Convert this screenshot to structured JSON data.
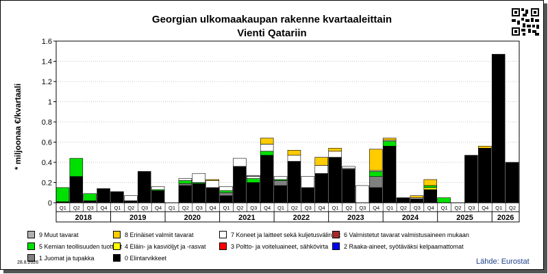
{
  "title": "Georgian ulkomaakaupan rakenne kvartaaleittain",
  "subtitle": "Vienti Qatariin",
  "date": "28.8.2026",
  "source": "Lähde: Eurostat",
  "chart_data": {
    "type": "bar",
    "stacked": true,
    "title": "Georgian ulkomaakaupan rakenne kvartaaleittain",
    "subtitle": "Vienti Qatariin",
    "ylabel": "* miljoonaa €/kvartaali",
    "xlabel": "",
    "ylim": [
      0,
      1.6
    ],
    "yticks": [
      "0",
      "0.2",
      "0.4",
      "0.6",
      "0.8",
      "1",
      "1.2",
      "1.4",
      "1.6"
    ],
    "grid": true,
    "legend_position": "bottom",
    "years": [
      "2018",
      "2019",
      "2020",
      "2021",
      "2022",
      "2023",
      "2024",
      "2025",
      "2026"
    ],
    "categories": [
      "Q1",
      "Q2",
      "Q3",
      "Q4",
      "Q1",
      "Q2",
      "Q3",
      "Q4",
      "Q1",
      "Q2",
      "Q3",
      "Q4",
      "Q1",
      "Q2",
      "Q3",
      "Q4",
      "Q1",
      "Q2",
      "Q3",
      "Q4",
      "Q1",
      "Q2",
      "Q3",
      "Q4",
      "Q1",
      "Q2",
      "Q3",
      "Q4",
      "Q1",
      "Q2",
      "Q3",
      "Q4",
      "Q1",
      "Q2"
    ],
    "series": [
      {
        "name": "0 Elintarvikkeet",
        "color": "#000000",
        "values": [
          0.01,
          0.26,
          0.02,
          0.14,
          0.11,
          0.02,
          0.31,
          0.12,
          0,
          0.17,
          0.19,
          0.15,
          0.07,
          0.36,
          0.2,
          0.47,
          0.17,
          0.41,
          0.15,
          0.29,
          0.45,
          0.33,
          0,
          0.15,
          0.56,
          0.05,
          0.04,
          0.13,
          0,
          0,
          0.47,
          0.54,
          1.47,
          0.4
        ]
      },
      {
        "name": "1 Juomat ja tupakka",
        "color": "#808080",
        "values": [
          0,
          0,
          0,
          0,
          0,
          0,
          0,
          0,
          0,
          0.02,
          0,
          0,
          0.03,
          0,
          0,
          0,
          0.05,
          0,
          0,
          0,
          0,
          0.01,
          0,
          0.11,
          0,
          0,
          0,
          0,
          0,
          0,
          0,
          0,
          0,
          0
        ]
      },
      {
        "name": "2 Raaka-aineet, syötäväksi kelpaamattomat",
        "color": "#0000ff",
        "values": [
          0,
          0,
          0,
          0,
          0,
          0,
          0,
          0,
          0,
          0,
          0,
          0,
          0,
          0,
          0,
          0,
          0,
          0,
          0,
          0,
          0,
          0,
          0,
          0,
          0,
          0,
          0,
          0,
          0,
          0,
          0,
          0,
          0,
          0
        ]
      },
      {
        "name": "3 Poltto- ja voiteluaineet, sähkövirta",
        "color": "#ff0000",
        "values": [
          0,
          0,
          0,
          0,
          0,
          0,
          0,
          0,
          0,
          0,
          0,
          0,
          0,
          0,
          0,
          0,
          0,
          0,
          0,
          0,
          0,
          0,
          0,
          0,
          0,
          0,
          0,
          0,
          0,
          0,
          0,
          0,
          0,
          0
        ]
      },
      {
        "name": "4 Eläin- ja kasviöljyt ja -rasvat",
        "color": "#ffff00",
        "values": [
          0,
          0,
          0,
          0,
          0,
          0,
          0,
          0,
          0,
          0,
          0,
          0,
          0,
          0,
          0,
          0,
          0,
          0,
          0,
          0,
          0,
          0,
          0,
          0,
          0,
          0,
          0,
          0.02,
          0,
          0,
          0,
          0,
          0,
          0
        ]
      },
      {
        "name": "5 Kemian teollisuuden tuotteet",
        "color": "#00e000",
        "values": [
          0.14,
          0.18,
          0.07,
          0,
          0,
          0,
          0,
          0.01,
          0,
          0.03,
          0.01,
          0,
          0.02,
          0,
          0.04,
          0.04,
          0.01,
          0,
          0,
          0,
          0,
          0,
          0,
          0.05,
          0.05,
          0,
          0,
          0.02,
          0.05,
          0,
          0,
          0,
          0,
          0
        ]
      },
      {
        "name": "6 Valmistetut tavarat valmistusaineen mukaan",
        "color": "#a52a2a",
        "values": [
          0,
          0,
          0,
          0,
          0,
          0,
          0,
          0,
          0,
          0,
          0,
          0,
          0,
          0,
          0,
          0,
          0,
          0,
          0,
          0,
          0,
          0,
          0,
          0,
          0,
          0,
          0,
          0,
          0,
          0,
          0,
          0,
          0,
          0
        ]
      },
      {
        "name": "7 Koneet ja laitteet sekä kuljetusvälineet",
        "color": "#ffffff",
        "values": [
          0,
          0,
          0,
          0,
          0,
          0.05,
          0,
          0.03,
          0,
          0.02,
          0.09,
          0.07,
          0.04,
          0.08,
          0.02,
          0.07,
          0.03,
          0.06,
          0.11,
          0.08,
          0.06,
          0.02,
          0.17,
          0.01,
          0.01,
          0,
          0.01,
          0,
          0,
          0,
          0,
          0,
          0,
          0
        ]
      },
      {
        "name": "8 Erinäiset valmiit tavarat",
        "color": "#ffcc00",
        "values": [
          0,
          0,
          0,
          0,
          0,
          0,
          0,
          0,
          0,
          0,
          0,
          0.01,
          0,
          0,
          0,
          0.06,
          0,
          0.05,
          0,
          0.08,
          0.03,
          0,
          0,
          0.21,
          0.02,
          0,
          0.02,
          0.06,
          0,
          0,
          0,
          0.02,
          0,
          0
        ]
      },
      {
        "name": "9 Muut tavarat",
        "color": "#b0b0b0",
        "values": [
          0,
          0,
          0,
          0,
          0,
          0,
          0,
          0,
          0,
          0,
          0,
          0,
          0,
          0,
          0.01,
          0,
          0,
          0,
          0,
          0,
          0,
          0,
          0,
          0,
          0,
          0,
          0,
          0,
          0,
          0,
          0,
          0,
          0,
          0
        ]
      }
    ]
  },
  "legend": [
    {
      "label": "9 Muut tavarat",
      "color": "#b0b0b0"
    },
    {
      "label": "8 Erinäiset valmiit tavarat",
      "color": "#ffcc00"
    },
    {
      "label": "7 Koneet ja laitteet sekä kuljetusvälineet",
      "color": "#ffffff"
    },
    {
      "label": "6 Valmistetut tavarat valmistusaineen mukaan",
      "color": "#a52a2a"
    },
    {
      "label": "5 Kemian teollisuuden tuotteet",
      "color": "#00e000"
    },
    {
      "label": "4 Eläin- ja kasviöljyt ja -rasvat",
      "color": "#ffff00"
    },
    {
      "label": "3 Poltto- ja voiteluaineet, sähkövirta",
      "color": "#ff0000"
    },
    {
      "label": "2 Raaka-aineet, syötäväksi kelpaamattomat",
      "color": "#0000ff"
    },
    {
      "label": "1 Juomat ja tupakka",
      "color": "#808080"
    },
    {
      "label": "0 Elintarvikkeet",
      "color": "#000000"
    }
  ]
}
